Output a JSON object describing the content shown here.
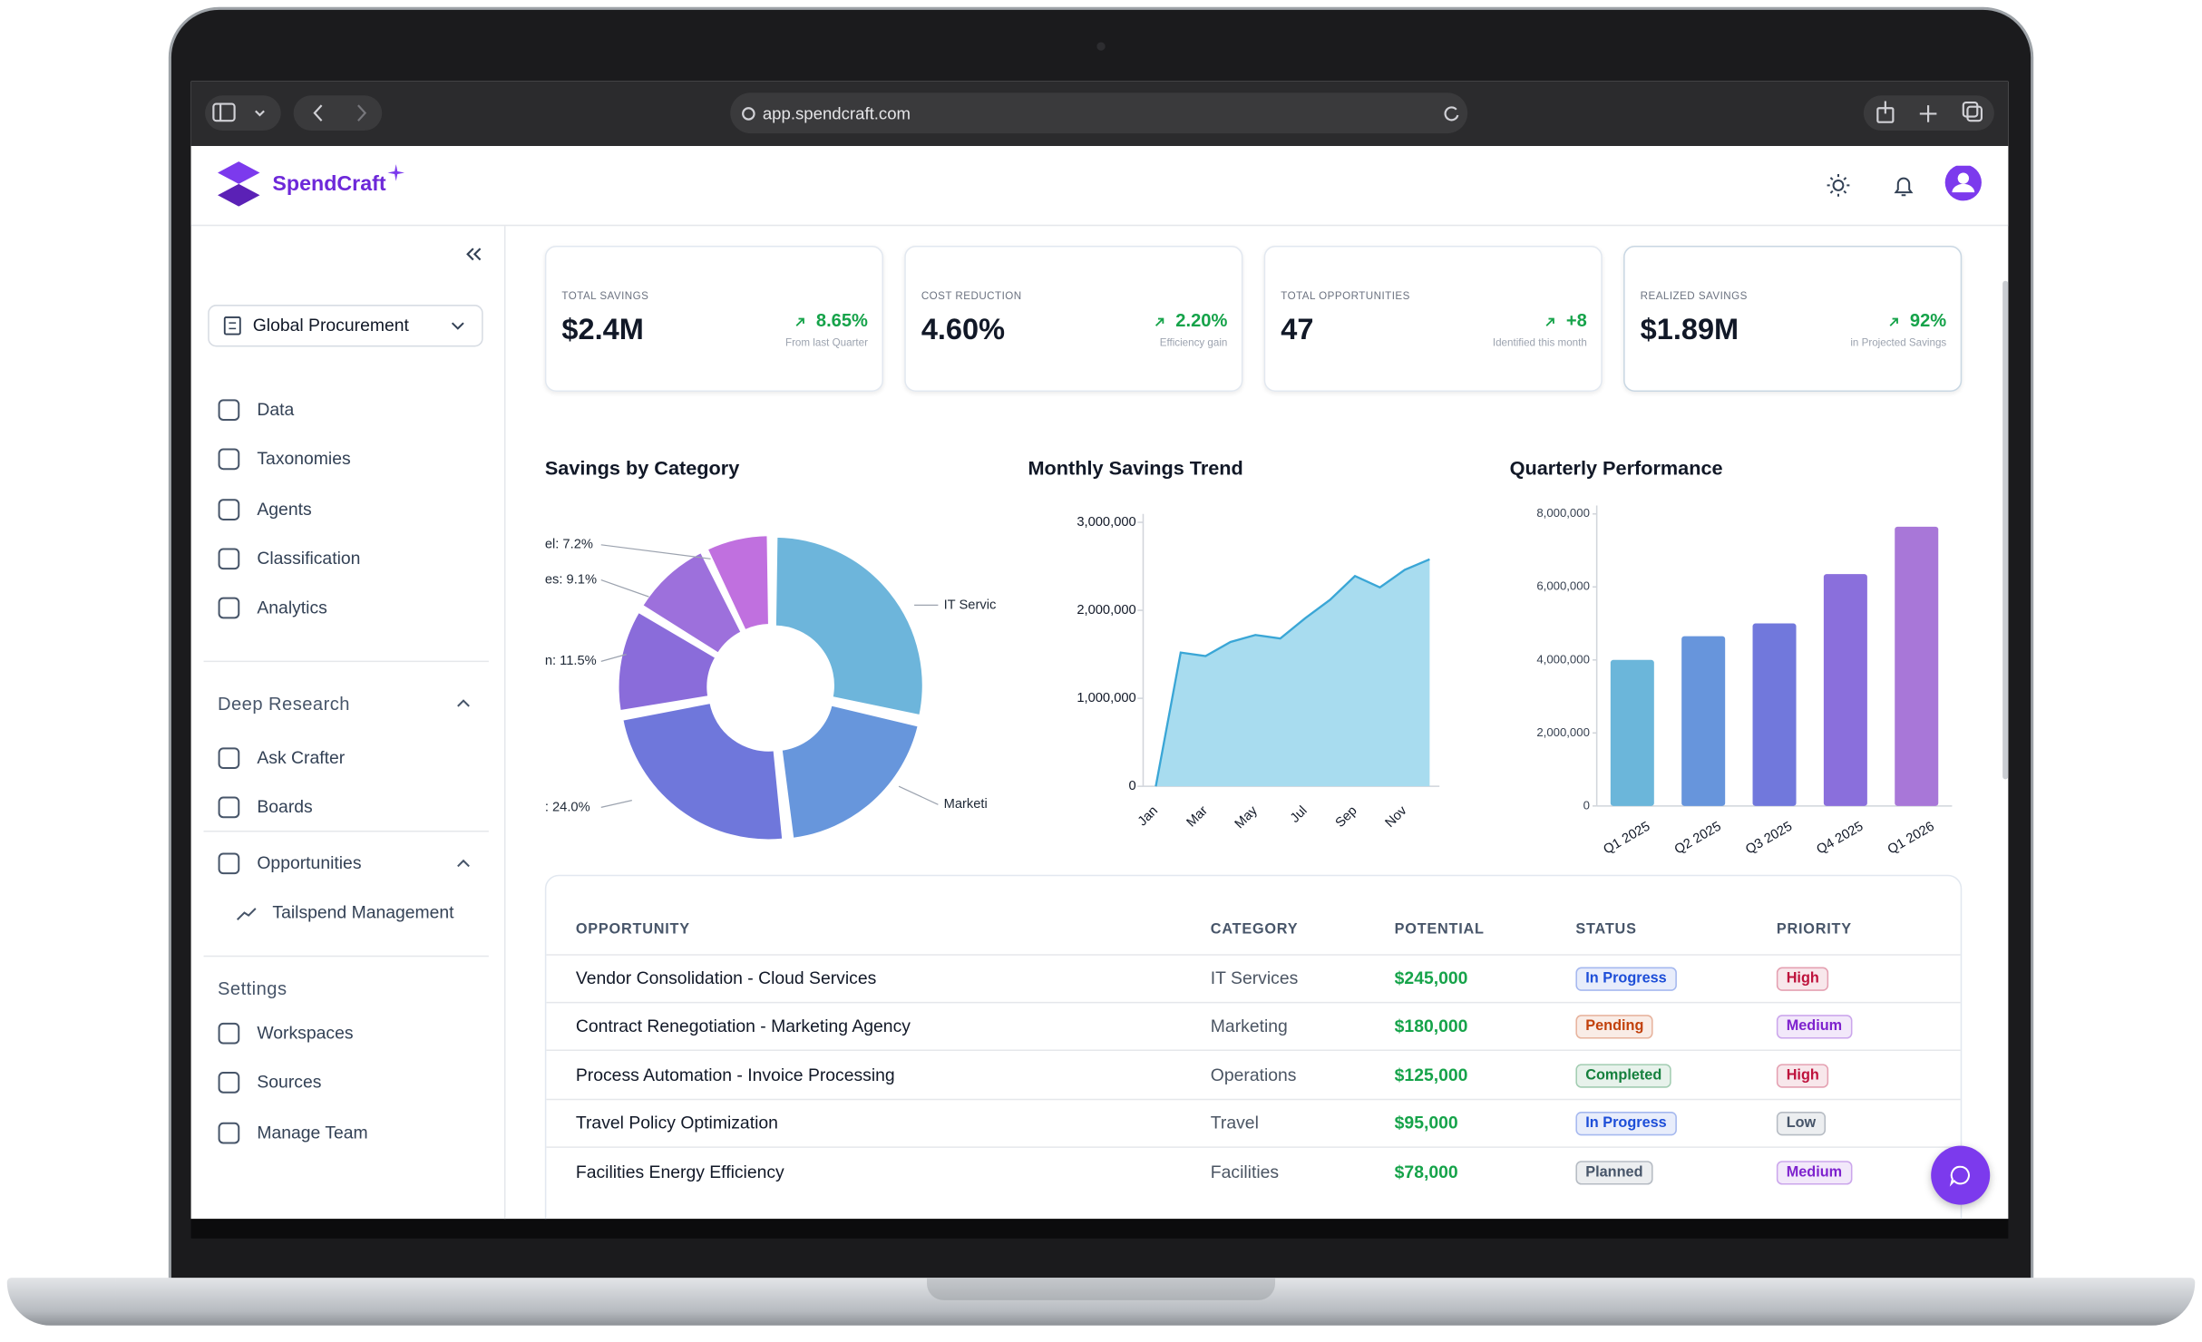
{
  "browser": {
    "url": "app.spendcraft.com"
  },
  "header": {
    "brand": "SpendCraft"
  },
  "sidebar": {
    "workspace": "Global Procurement",
    "nav": [
      "Data",
      "Taxonomies",
      "Agents",
      "Classification",
      "Analytics"
    ],
    "deep_research": {
      "title": "Deep Research",
      "items": [
        "Ask Crafter",
        "Boards",
        "Opportunities"
      ],
      "sub_items": [
        "Tailspend Management"
      ]
    },
    "settings": {
      "title": "Settings",
      "items": [
        "Workspaces",
        "Sources",
        "Manage Team"
      ]
    }
  },
  "kpis": [
    {
      "label": "TOTAL SAVINGS",
      "value": "$2.4M",
      "change": "8.65%",
      "note": "From last Quarter"
    },
    {
      "label": "COST REDUCTION",
      "value": "4.60%",
      "change": "2.20%",
      "note": "Efficiency gain"
    },
    {
      "label": "TOTAL OPPORTUNITIES",
      "value": "47",
      "change": "+8",
      "note": "Identified this month"
    },
    {
      "label": "REALIZED SAVINGS",
      "value": "$1.89M",
      "change": "92%",
      "note": "in Projected Savings"
    }
  ],
  "charts": [
    {
      "type": "pie",
      "title": "Savings by Category",
      "labels": [
        "IT Servic",
        "Marketi",
        ": 24.0%",
        "n: 11.5%",
        "es: 9.1%",
        "el: 7.2%"
      ],
      "values": [
        28.5,
        19.7,
        24.0,
        11.5,
        9.1,
        7.2
      ],
      "colors": [
        "#6db5db",
        "#6796dc",
        "#6f77db",
        "#8a6cda",
        "#9d70dc",
        "#c070df"
      ]
    },
    {
      "type": "area",
      "title": "Monthly Savings Trend",
      "categories": [
        "Jan",
        null,
        "Mar",
        null,
        "May",
        null,
        "Jul",
        null,
        "Sep",
        null,
        "Nov",
        null
      ],
      "values": [
        0,
        1520000,
        1480000,
        1640000,
        1720000,
        1680000,
        1910000,
        2120000,
        2390000,
        2260000,
        2460000,
        2580000
      ],
      "color": "#3aa6d6",
      "fill": "#a8dcef",
      "ylim": [
        0,
        3000000
      ],
      "yticks": [
        0,
        {
          "value": 1000000,
          "label": "1,000,000"
        },
        {
          "value": 2000000,
          "label": "2,000,000"
        },
        {
          "value": 3000000,
          "label": "3,000,000"
        }
      ]
    },
    {
      "type": "bar",
      "title": "Quarterly Performance",
      "categories": [
        "Q1 2025",
        "Q2 2025",
        "Q3 2025",
        "Q4 2025",
        "Q1 2026"
      ],
      "values": [
        4000000,
        4650000,
        5000000,
        6350000,
        7650000
      ],
      "colors": [
        "#6bb6da",
        "#6795dc",
        "#7178dc",
        "#8a6fdc",
        "#a877d8"
      ],
      "ylim": [
        0,
        8000000
      ],
      "yticks": [
        0,
        {
          "value": 2000000,
          "label": "2,000,000"
        },
        {
          "value": 4000000,
          "label": "4,000,000"
        },
        {
          "value": 6000000,
          "label": "6,000,000"
        },
        {
          "value": 8000000,
          "label": "8,000,000"
        }
      ]
    }
  ],
  "table": {
    "headers": [
      "OPPORTUNITY",
      "CATEGORY",
      "POTENTIAL",
      "STATUS",
      "PRIORITY"
    ],
    "rows": [
      {
        "opportunity": "Vendor Consolidation - Cloud Services",
        "category": "IT Services",
        "potential": "$245,000",
        "status": "In Progress",
        "status_color": "#1d4ed8",
        "priority": "High",
        "priority_color": "#be123c"
      },
      {
        "opportunity": "Contract Renegotiation - Marketing Agency",
        "category": "Marketing",
        "potential": "$180,000",
        "status": "Pending",
        "status_color": "#c2410c",
        "priority": "Medium",
        "priority_color": "#7e22ce"
      },
      {
        "opportunity": "Process Automation - Invoice Processing",
        "category": "Operations",
        "potential": "$125,000",
        "status": "Completed",
        "status_color": "#15803d",
        "priority": "High",
        "priority_color": "#be123c"
      },
      {
        "opportunity": "Travel Policy Optimization",
        "category": "Travel",
        "potential": "$95,000",
        "status": "In Progress",
        "status_color": "#1d4ed8",
        "priority": "Low",
        "priority_color": "#475569"
      },
      {
        "opportunity": "Facilities Energy Efficiency",
        "category": "Facilities",
        "potential": "$78,000",
        "status": "Planned",
        "status_color": "#475569",
        "priority": "Medium",
        "priority_color": "#7e22ce"
      }
    ]
  }
}
